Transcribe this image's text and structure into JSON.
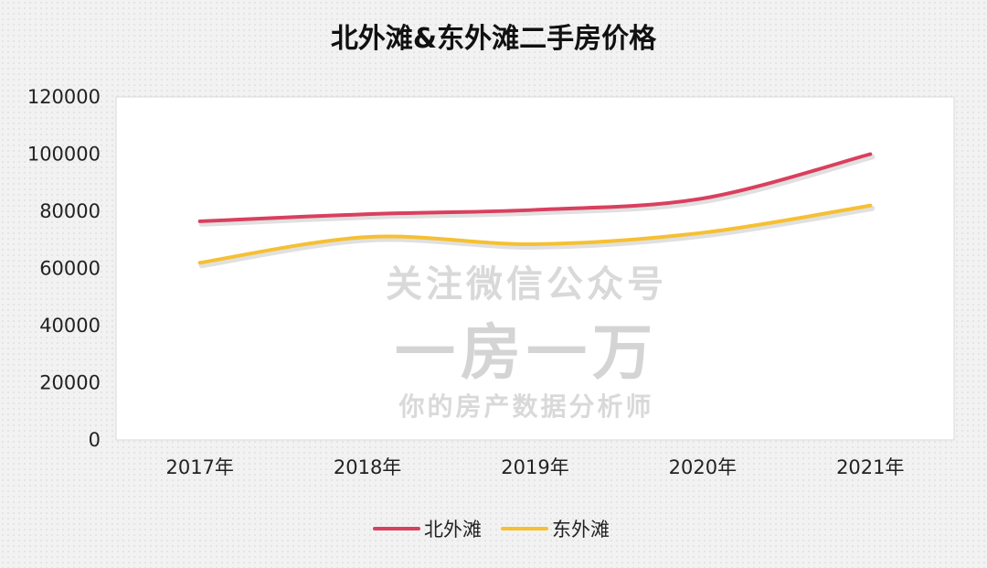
{
  "chart_data": {
    "type": "line",
    "title": "北外滩&东外滩二手房价格",
    "categories": [
      "2017年",
      "2018年",
      "2019年",
      "2020年",
      "2021年"
    ],
    "y_ticks": [
      "0",
      "20000",
      "40000",
      "60000",
      "80000",
      "100000",
      "120000"
    ],
    "ylim": [
      0,
      120000
    ],
    "grid": false,
    "smooth": true,
    "legend_position": "bottom",
    "series": [
      {
        "name": "北外滩",
        "color": "#d9405e",
        "values": [
          76500,
          79000,
          80500,
          84500,
          100000
        ]
      },
      {
        "name": "东外滩",
        "color": "#f5c033",
        "values": [
          62000,
          71000,
          68500,
          72500,
          82000
        ]
      }
    ]
  },
  "watermark": {
    "line1": "关注微信公众号",
    "line2": "一房一万",
    "line3": "你的房产数据分析师"
  }
}
